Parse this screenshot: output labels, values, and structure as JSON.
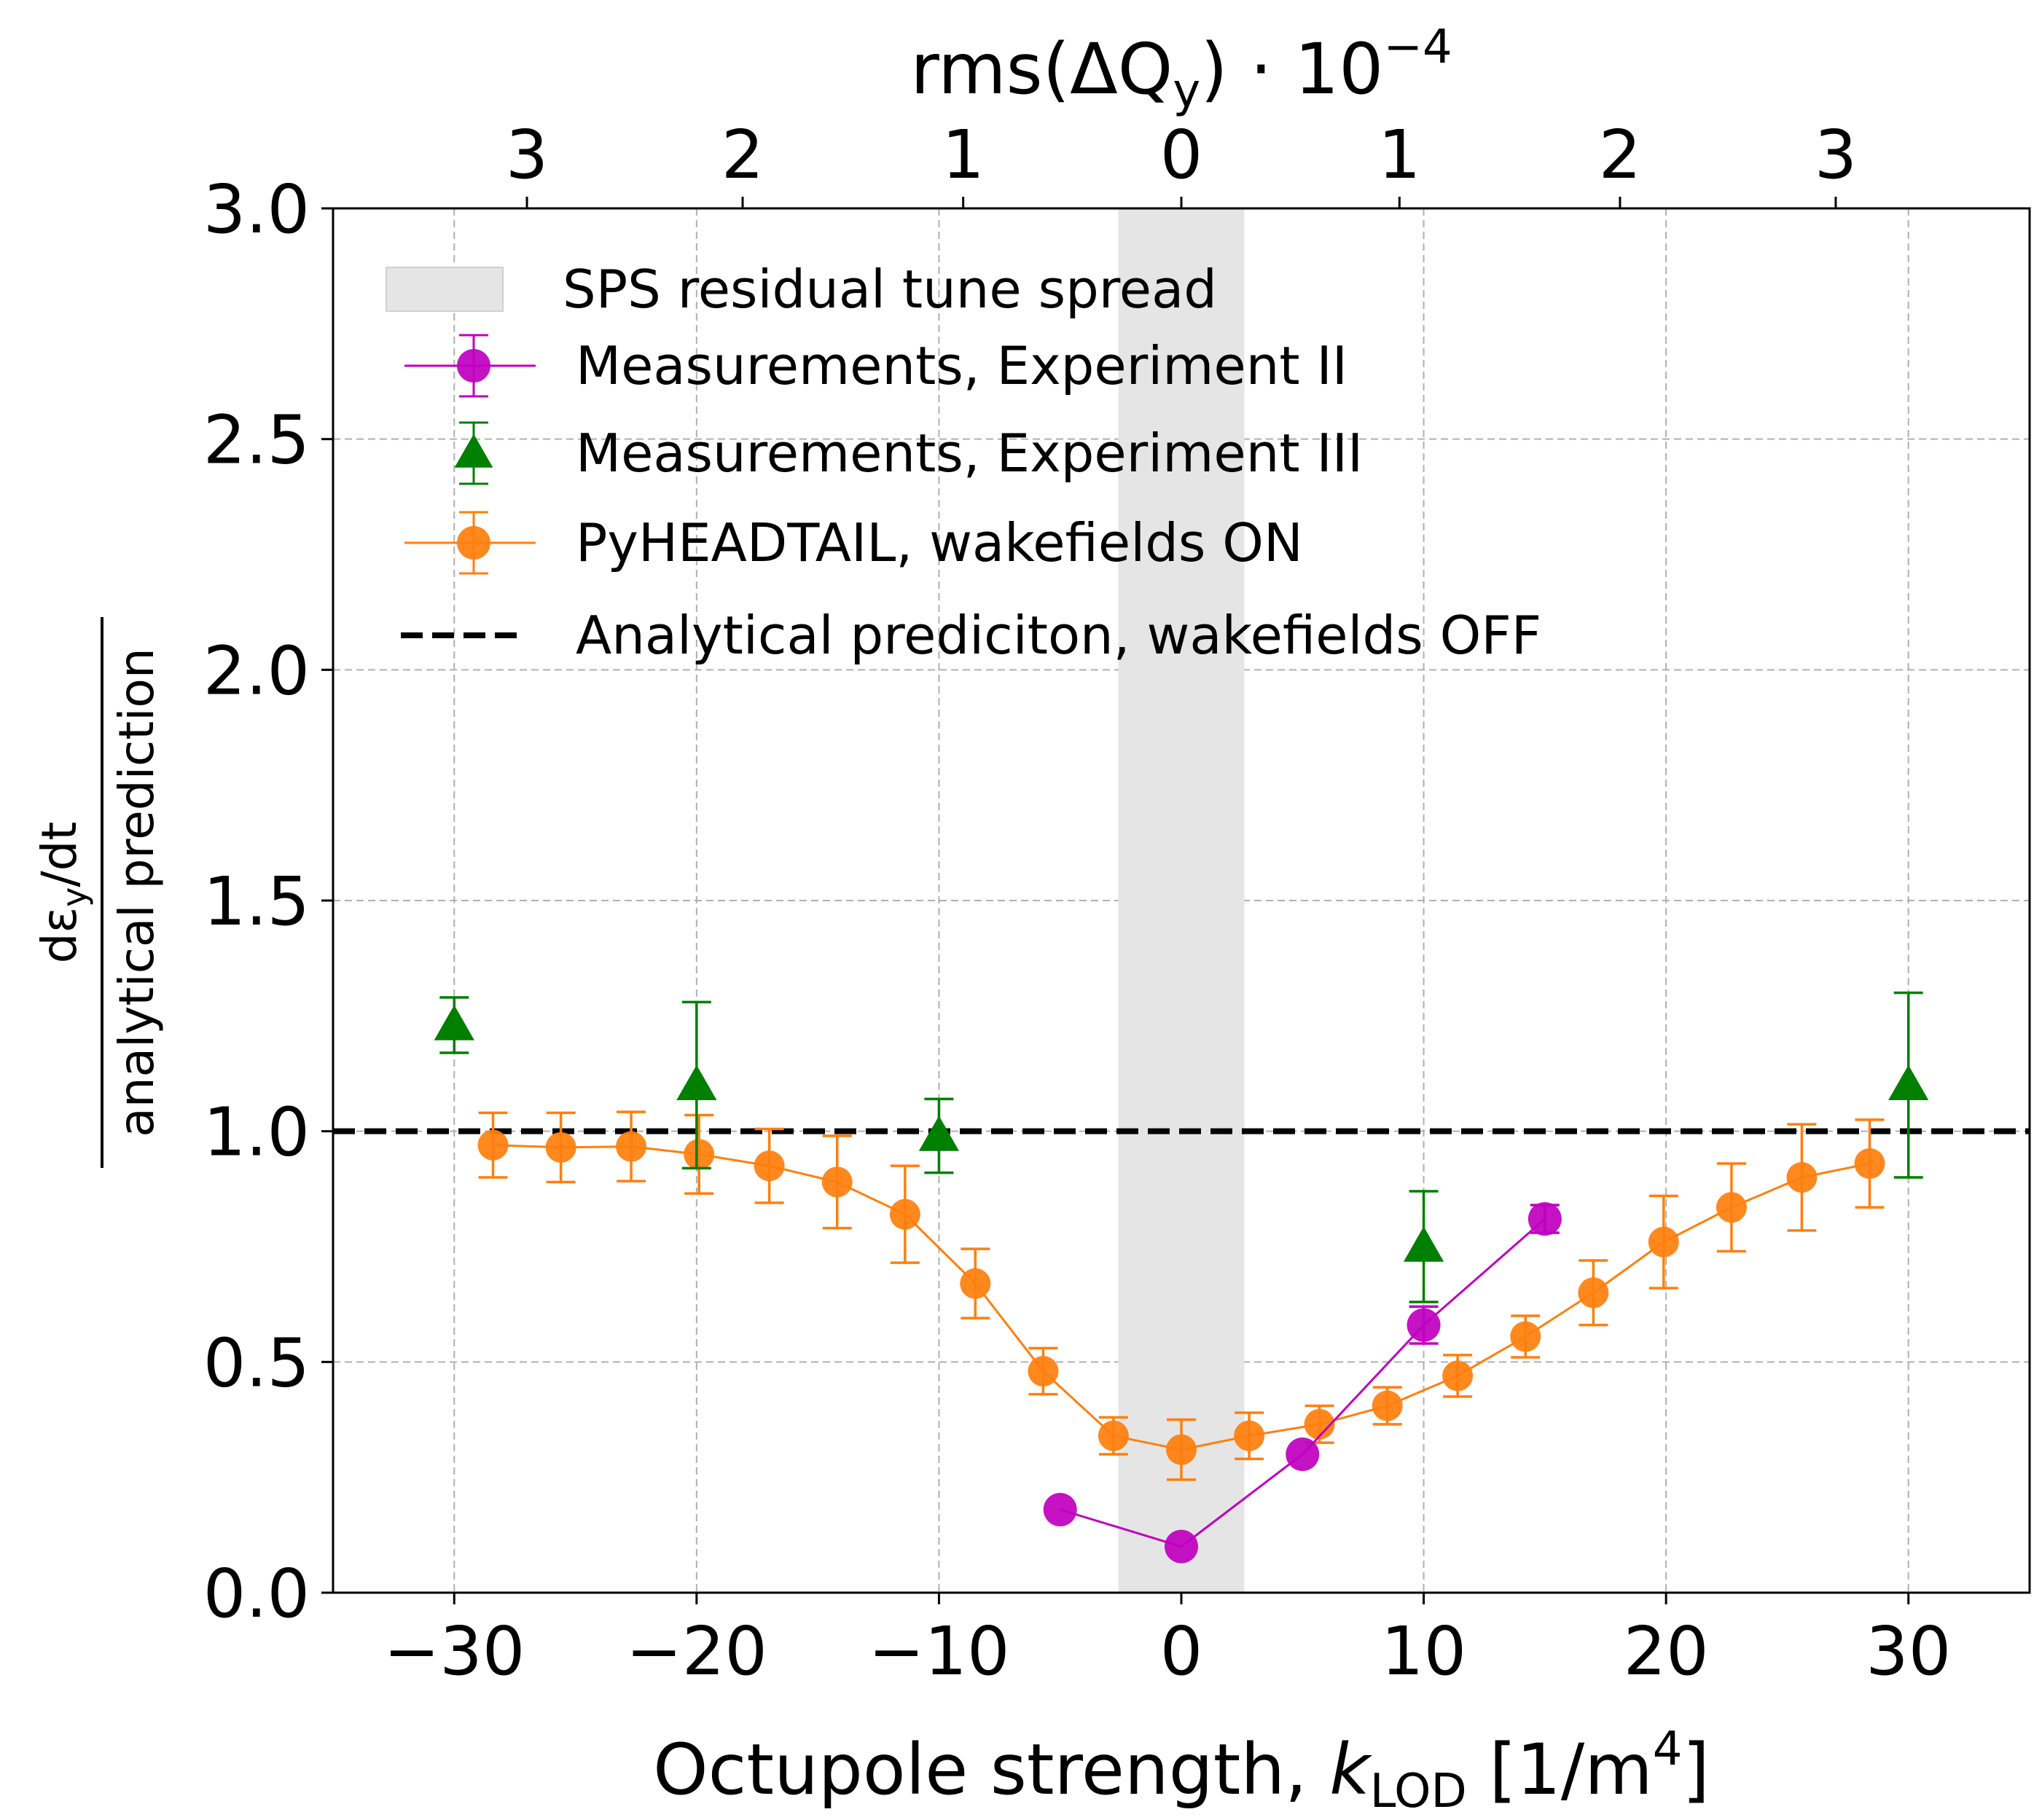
{
  "chart_data": {
    "type": "line",
    "xlabel": "Octupole strength, k_LOD [1/m^4]",
    "xlabel_parts": {
      "prefix": "Octupole strength, ",
      "var": "k",
      "sub": "LOD",
      "mid": " [1/m",
      "sup": "4",
      "suffix": "]"
    },
    "top_xlabel": "rms(ΔQ_y) · 10^-4",
    "top_xlabel_parts": {
      "prefix": "rms(ΔQ",
      "sub": "y",
      "mid": ") · 10",
      "sup": "−4"
    },
    "ylabel_numerator": "dε_y/dt",
    "ylabel_numerator_parts": {
      "prefix": "dε",
      "sub": "y",
      "suffix": "/dt"
    },
    "ylabel_denominator": "analytical prediction",
    "xlim": [
      -35,
      35
    ],
    "ylim": [
      0,
      3
    ],
    "grid": true,
    "legend_position": "top-left",
    "x_ticks": [
      {
        "value": -30,
        "label": "−30"
      },
      {
        "value": -20,
        "label": "−20"
      },
      {
        "value": -10,
        "label": "−10"
      },
      {
        "value": 0,
        "label": "0"
      },
      {
        "value": 10,
        "label": "10"
      },
      {
        "value": 20,
        "label": "20"
      },
      {
        "value": 30,
        "label": "30"
      }
    ],
    "y_ticks": [
      {
        "value": 0.0,
        "label": "0.0"
      },
      {
        "value": 0.5,
        "label": "0.5"
      },
      {
        "value": 1.0,
        "label": "1.0"
      },
      {
        "value": 1.5,
        "label": "1.5"
      },
      {
        "value": 2.0,
        "label": "2.0"
      },
      {
        "value": 2.5,
        "label": "2.5"
      },
      {
        "value": 3.0,
        "label": "3.0"
      }
    ],
    "top_ticks": [
      {
        "value": -27.0,
        "label": "3"
      },
      {
        "value": -18.1,
        "label": "2"
      },
      {
        "value": -9.0,
        "label": "1"
      },
      {
        "value": 0.0,
        "label": "0"
      },
      {
        "value": 9.0,
        "label": "1"
      },
      {
        "value": 18.1,
        "label": "2"
      },
      {
        "value": 27.0,
        "label": "3"
      }
    ],
    "band": {
      "name": "SPS residual tune spread",
      "x0": -2.6,
      "x1": 2.6,
      "color": "#e5e5e5"
    },
    "hline": {
      "name": "Analytical prediciton, wakefields OFF",
      "y": 1.0,
      "color": "#000000"
    },
    "series": [
      {
        "name": " Measurements, Experiment II",
        "color": "#bf00bf",
        "marker": "circle",
        "line": true,
        "points": [
          {
            "x": -5,
            "y": 0.18
          },
          {
            "x": 0,
            "y": 0.1
          },
          {
            "x": 5,
            "y": 0.3
          },
          {
            "x": 10,
            "y": 0.58,
            "err": 0.04
          },
          {
            "x": 15,
            "y": 0.81,
            "err": 0.03
          }
        ]
      },
      {
        "name": " Measurements, Experiment III",
        "color": "#007f00",
        "marker": "triangle",
        "line": false,
        "points": [
          {
            "x": -30,
            "y": 1.23,
            "err": 0.06
          },
          {
            "x": -20,
            "y": 1.1,
            "err": 0.18
          },
          {
            "x": -10,
            "y": 0.99,
            "err": 0.08
          },
          {
            "x": 10,
            "y": 0.75,
            "err": 0.12
          },
          {
            "x": 30,
            "y": 1.1,
            "err": 0.2
          }
        ]
      },
      {
        "name": " PyHEADTAIL, wakefields ON",
        "color": "#ff7f0e",
        "marker": "circle",
        "line": true,
        "points": [
          {
            "x": -28.4,
            "y": 0.97,
            "err": 0.07
          },
          {
            "x": -25.6,
            "y": 0.965,
            "err": 0.075
          },
          {
            "x": -22.7,
            "y": 0.967,
            "err": 0.075
          },
          {
            "x": -19.9,
            "y": 0.95,
            "err": 0.085
          },
          {
            "x": -17.0,
            "y": 0.925,
            "err": 0.08
          },
          {
            "x": -14.2,
            "y": 0.89,
            "err": 0.1
          },
          {
            "x": -11.4,
            "y": 0.82,
            "err": 0.105
          },
          {
            "x": -8.5,
            "y": 0.67,
            "err": 0.075
          },
          {
            "x": -5.7,
            "y": 0.48,
            "err": 0.05
          },
          {
            "x": -2.8,
            "y": 0.34,
            "err": 0.04
          },
          {
            "x": 0.0,
            "y": 0.31,
            "err": 0.065
          },
          {
            "x": 2.8,
            "y": 0.34,
            "err": 0.05
          },
          {
            "x": 5.7,
            "y": 0.365,
            "err": 0.04
          },
          {
            "x": 8.5,
            "y": 0.405,
            "err": 0.04
          },
          {
            "x": 11.4,
            "y": 0.47,
            "err": 0.045
          },
          {
            "x": 14.2,
            "y": 0.555,
            "err": 0.045
          },
          {
            "x": 17.0,
            "y": 0.65,
            "err": 0.07
          },
          {
            "x": 19.9,
            "y": 0.76,
            "err": 0.1
          },
          {
            "x": 22.7,
            "y": 0.835,
            "err": 0.095
          },
          {
            "x": 25.6,
            "y": 0.9,
            "err": 0.115
          },
          {
            "x": 28.4,
            "y": 0.93,
            "err": 0.095
          }
        ]
      }
    ],
    "legend_order": [
      "band",
      "series0",
      "series1",
      "series2",
      "hline"
    ]
  }
}
